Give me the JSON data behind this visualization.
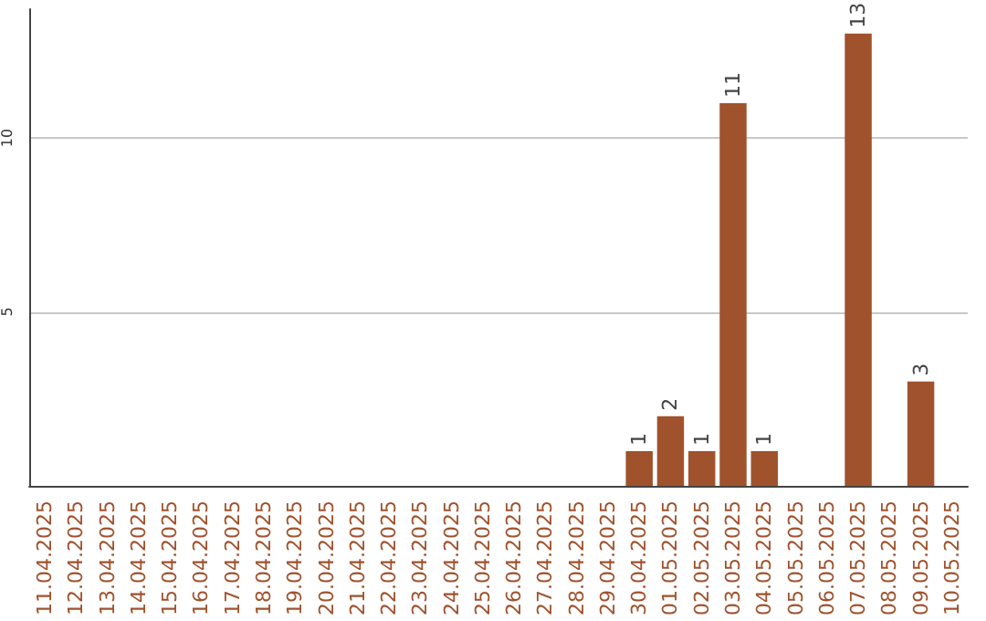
{
  "chart_data": {
    "type": "bar",
    "categories": [
      "11.04.2025",
      "12.04.2025",
      "13.04.2025",
      "14.04.2025",
      "15.04.2025",
      "16.04.2025",
      "17.04.2025",
      "18.04.2025",
      "19.04.2025",
      "20.04.2025",
      "21.04.2025",
      "22.04.2025",
      "23.04.2025",
      "24.04.2025",
      "25.04.2025",
      "26.04.2025",
      "27.04.2025",
      "28.04.2025",
      "29.04.2025",
      "30.04.2025",
      "01.05.2025",
      "02.05.2025",
      "03.05.2025",
      "04.05.2025",
      "05.05.2025",
      "06.05.2025",
      "07.05.2025",
      "08.05.2025",
      "09.05.2025",
      "10.05.2025"
    ],
    "values": [
      0,
      0,
      0,
      0,
      0,
      0,
      0,
      0,
      0,
      0,
      0,
      0,
      0,
      0,
      0,
      0,
      0,
      0,
      0,
      1,
      2,
      1,
      11,
      1,
      0,
      0,
      13,
      0,
      3,
      0
    ],
    "value_labels": [
      null,
      null,
      null,
      null,
      null,
      null,
      null,
      null,
      null,
      null,
      null,
      null,
      null,
      null,
      null,
      null,
      null,
      null,
      null,
      "1",
      "2",
      "1",
      "11",
      "1",
      null,
      null,
      "13",
      null,
      "3",
      null
    ],
    "color": "#a0522d",
    "ylim": [
      0,
      13.7
    ],
    "yticks": [
      5,
      10
    ],
    "grid": "y"
  }
}
